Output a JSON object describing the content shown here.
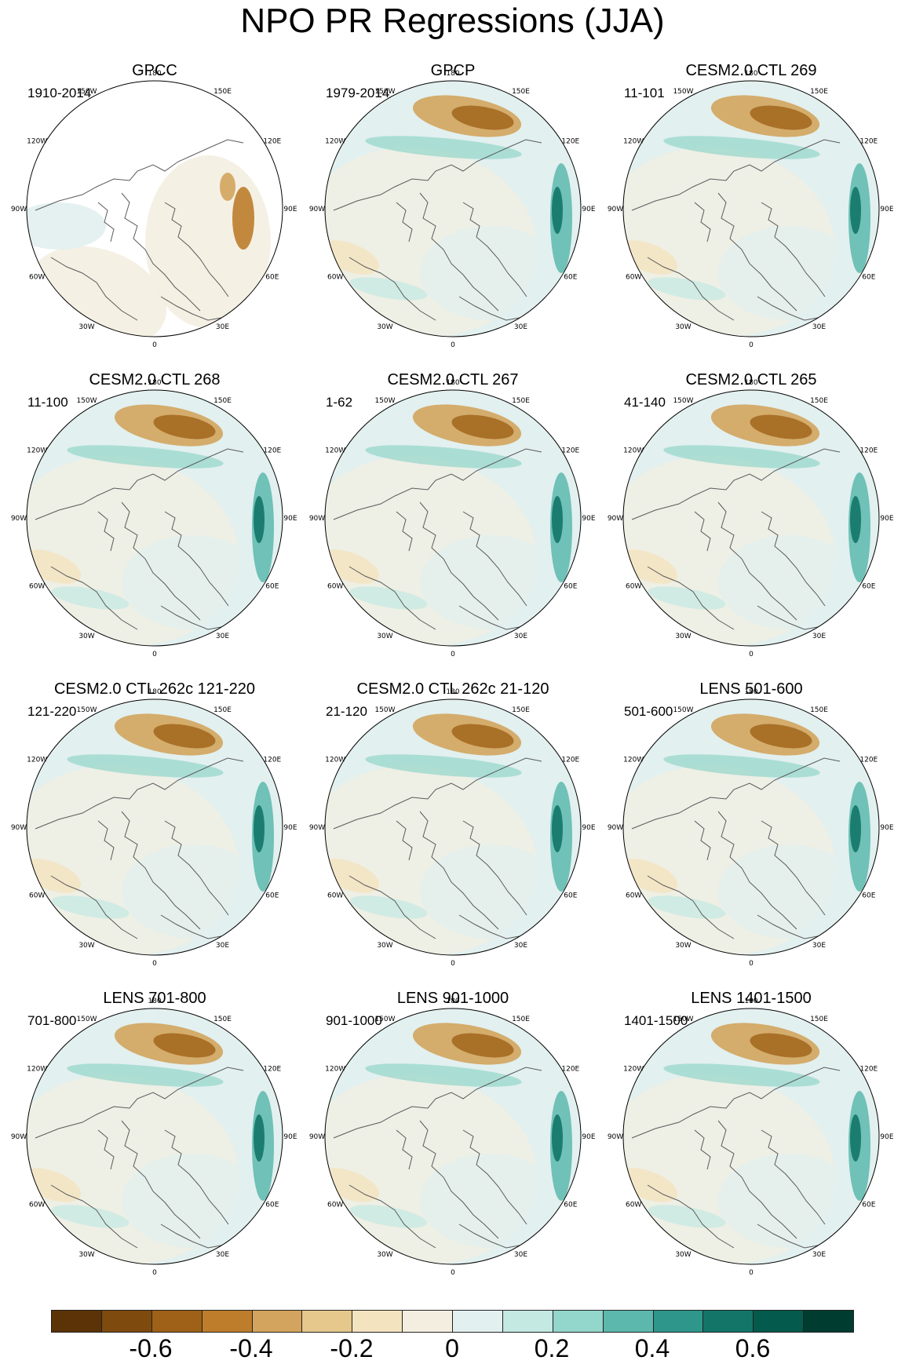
{
  "title": "NPO PR Regressions (JJA)",
  "panels": [
    {
      "title": "GPCC",
      "period": "1910-2014",
      "variant": "gpcc"
    },
    {
      "title": "GPCP",
      "period": "1979-2014",
      "variant": "gpcp"
    },
    {
      "title": "CESM2.0 CTL 269",
      "period": "11-101",
      "variant": "model"
    },
    {
      "title": "CESM2.0 CTL 268",
      "period": "11-100",
      "variant": "model"
    },
    {
      "title": "CESM2.0 CTL 267",
      "period": "1-62",
      "variant": "model"
    },
    {
      "title": "CESM2.0 CTL 265",
      "period": "41-140",
      "variant": "model"
    },
    {
      "title": "CESM2.0 CTL 262c 121-220",
      "period": "121-220",
      "variant": "model"
    },
    {
      "title": "CESM2.0 CTL 262c 21-120",
      "period": "21-120",
      "variant": "model"
    },
    {
      "title": "LENS 501-600",
      "period": "501-600",
      "variant": "model"
    },
    {
      "title": "LENS 701-800",
      "period": "701-800",
      "variant": "model"
    },
    {
      "title": "LENS 901-1000",
      "period": "901-1000",
      "variant": "model"
    },
    {
      "title": "LENS 1401-1500",
      "period": "1401-1500",
      "variant": "model"
    }
  ],
  "map_labels": {
    "lon_180": "180",
    "lon_150W": "150W",
    "lon_150E": "150E",
    "lon_120W": "120W",
    "lon_120E": "120E",
    "lon_90W": "90W",
    "lon_90E": "90E",
    "lon_60W": "60W",
    "lon_60E": "60E",
    "lon_30W": "30W",
    "lon_30E": "30E",
    "lon_0": "0"
  },
  "colorbar": {
    "colors": [
      "#5c3306",
      "#7e4a0e",
      "#9e6117",
      "#bd7d2b",
      "#d3a45d",
      "#e6c78c",
      "#f4e3bf",
      "#f4eee1",
      "#e2f0ef",
      "#c3e9e2",
      "#93d6cb",
      "#5cb8ad",
      "#2e968a",
      "#127568",
      "#045a4d",
      "#003c30"
    ],
    "labels": [
      "-0.6",
      "-0.4",
      "-0.2",
      "0",
      "0.2",
      "0.4",
      "0.6"
    ]
  }
}
